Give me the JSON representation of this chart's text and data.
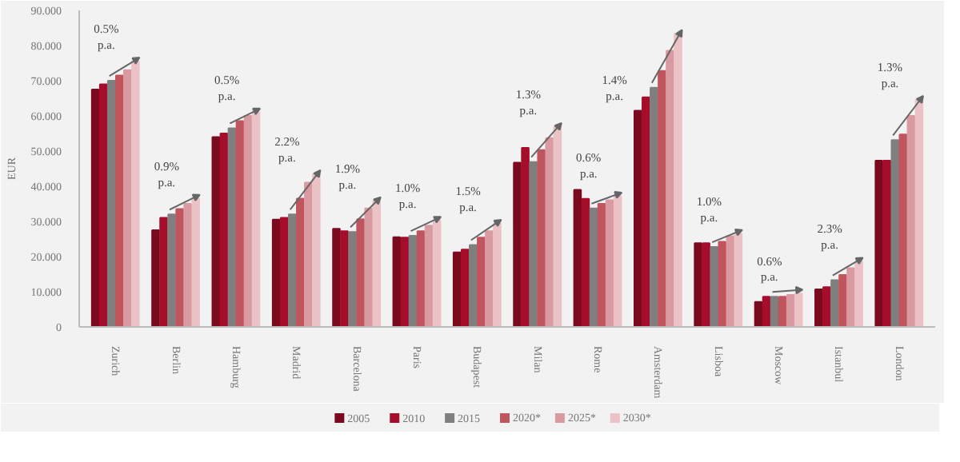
{
  "chart_data": {
    "type": "bar",
    "ylabel": "EUR",
    "categories": [
      "Zurich",
      "Berlin",
      "Hamburg",
      "Madrid",
      "Barcelona",
      "Paris",
      "Budapest",
      "Milan",
      "Rome",
      "Amsterdam",
      "Lisboa",
      "Moscow",
      "Istanbul",
      "London"
    ],
    "series": [
      {
        "name": "2005",
        "color": "#7b0a1e",
        "values": [
          67.5,
          27.5,
          54.0,
          30.5,
          27.9,
          25.5,
          21.2,
          46.7,
          39.0,
          61.5,
          23.8,
          7.1,
          10.7,
          47.3
        ]
      },
      {
        "name": "2010",
        "color": "#a50d2b",
        "values": [
          69.0,
          31.0,
          55.0,
          31.0,
          27.2,
          25.4,
          22.0,
          50.9,
          36.4,
          65.3,
          23.8,
          8.6,
          11.3,
          47.3
        ]
      },
      {
        "name": "2015",
        "color": "#7f7f7f",
        "values": [
          70.0,
          32.0,
          56.5,
          32.0,
          27.0,
          25.9,
          23.3,
          46.9,
          33.7,
          68.0,
          22.7,
          8.6,
          13.3,
          53.1
        ]
      },
      {
        "name": "2020*",
        "color": "#c0555e",
        "values": [
          71.5,
          33.5,
          58.5,
          36.5,
          30.6,
          27.2,
          25.4,
          50.3,
          35.0,
          72.8,
          24.2,
          8.6,
          14.8,
          54.7
        ]
      },
      {
        "name": "2025*",
        "color": "#da9aa2",
        "values": [
          73.0,
          35.0,
          60.0,
          41.0,
          33.7,
          28.8,
          27.2,
          53.7,
          36.0,
          78.5,
          25.8,
          9.1,
          16.7,
          60.0
        ]
      },
      {
        "name": "2030*",
        "color": "#ebc3c6",
        "values": [
          75.5,
          36.5,
          61.0,
          43.5,
          35.8,
          30.2,
          29.4,
          56.9,
          37.1,
          83.4,
          26.5,
          9.5,
          18.6,
          64.6
        ]
      }
    ],
    "ylim": [
      0,
      90
    ],
    "yticks": [
      0,
      {
        "value": 10,
        "label": "10.000"
      },
      {
        "value": 20,
        "label": "20.000"
      },
      {
        "value": 30,
        "label": "30.000"
      },
      {
        "value": 40,
        "label": "40.000"
      },
      {
        "value": 50,
        "label": "50.000"
      },
      {
        "value": 60,
        "label": "60.000"
      },
      {
        "value": 70,
        "label": "70.000"
      },
      {
        "value": 80,
        "label": "80.000"
      },
      {
        "value": 90,
        "label": "90.000"
      }
    ],
    "legend": "bottom",
    "annotations": [
      "0.5%\np.a.",
      "0.9%\np.a.",
      "0.5%\np.a.",
      "2.2%\np.a.",
      "1.9%\np.a.",
      "1.0%\np.a.",
      "1.5%\np.a.",
      "1.3%\np.a.",
      "0.6%\np.a.",
      "1.4%\np.a.",
      "1.0%\np.a.",
      "0.6%\np.a.",
      "2.3%\np.a.",
      "1.3%\np.a."
    ]
  }
}
